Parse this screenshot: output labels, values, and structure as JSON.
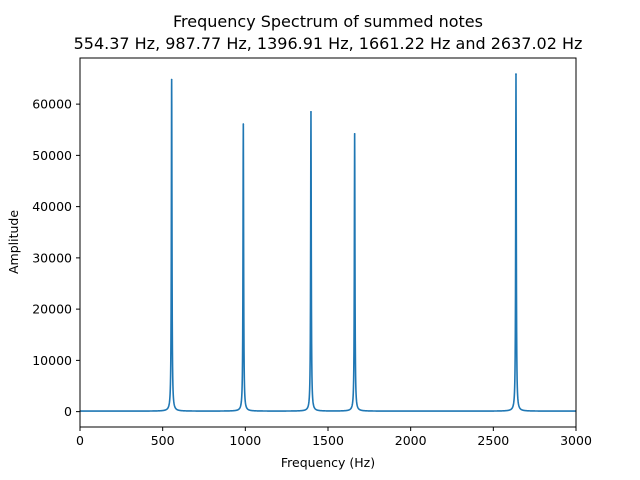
{
  "chart_data": {
    "type": "line",
    "title": "Frequency Spectrum of summed notes",
    "subtitle": "554.37 Hz, 987.77 Hz, 1396.91 Hz, 1661.22 Hz and 2637.02 Hz",
    "xlabel": "Frequency (Hz)",
    "ylabel": "Amplitude",
    "xlim": [
      0,
      3000
    ],
    "ylim": [
      -3000,
      69000
    ],
    "x_ticks": [
      0,
      500,
      1000,
      1500,
      2000,
      2500,
      3000
    ],
    "y_ticks": [
      0,
      10000,
      20000,
      30000,
      40000,
      50000,
      60000
    ],
    "grid": false,
    "line_color": "#1f77b4",
    "baseline": 100,
    "peaks": [
      {
        "x": 554.37,
        "y": 64800
      },
      {
        "x": 987.77,
        "y": 56100
      },
      {
        "x": 1396.91,
        "y": 58500
      },
      {
        "x": 1661.22,
        "y": 54200
      },
      {
        "x": 2637.02,
        "y": 65800
      }
    ]
  }
}
